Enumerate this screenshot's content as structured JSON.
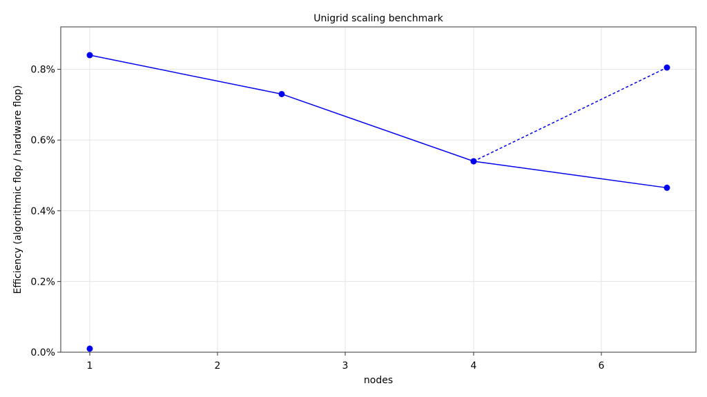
{
  "chart_data": {
    "type": "line",
    "title": "Unigrid scaling benchmark",
    "xlabel": "nodes",
    "ylabel": "Efficiency (algorithmic flop / hardware flop)",
    "x_tick_labels": [
      "1",
      "2",
      "3",
      "4",
      "6"
    ],
    "y_tick_labels": [
      "0.0%",
      "0.2%",
      "0.4%",
      "0.6%",
      "0.8%"
    ],
    "y_tick_values": [
      0.0,
      0.2,
      0.4,
      0.6,
      0.8
    ],
    "ylim": [
      0.0,
      0.92
    ],
    "grid": true,
    "colors": {
      "series": "#0000ee",
      "grid": "#e4e4e4",
      "frame": "#555555"
    },
    "series": [
      {
        "style": "solid",
        "points": [
          {
            "x": "1",
            "y": 0.84
          },
          {
            "x": "2.5",
            "y": 0.73
          },
          {
            "x": "4",
            "y": 0.54
          },
          {
            "x": "6.5",
            "y": 0.465
          }
        ]
      },
      {
        "style": "dashed",
        "points": [
          {
            "x": "4",
            "y": 0.54
          },
          {
            "x": "6.5",
            "y": 0.805
          }
        ]
      },
      {
        "style": "markers",
        "points": [
          {
            "x": "1",
            "y": 0.01
          }
        ]
      }
    ]
  }
}
